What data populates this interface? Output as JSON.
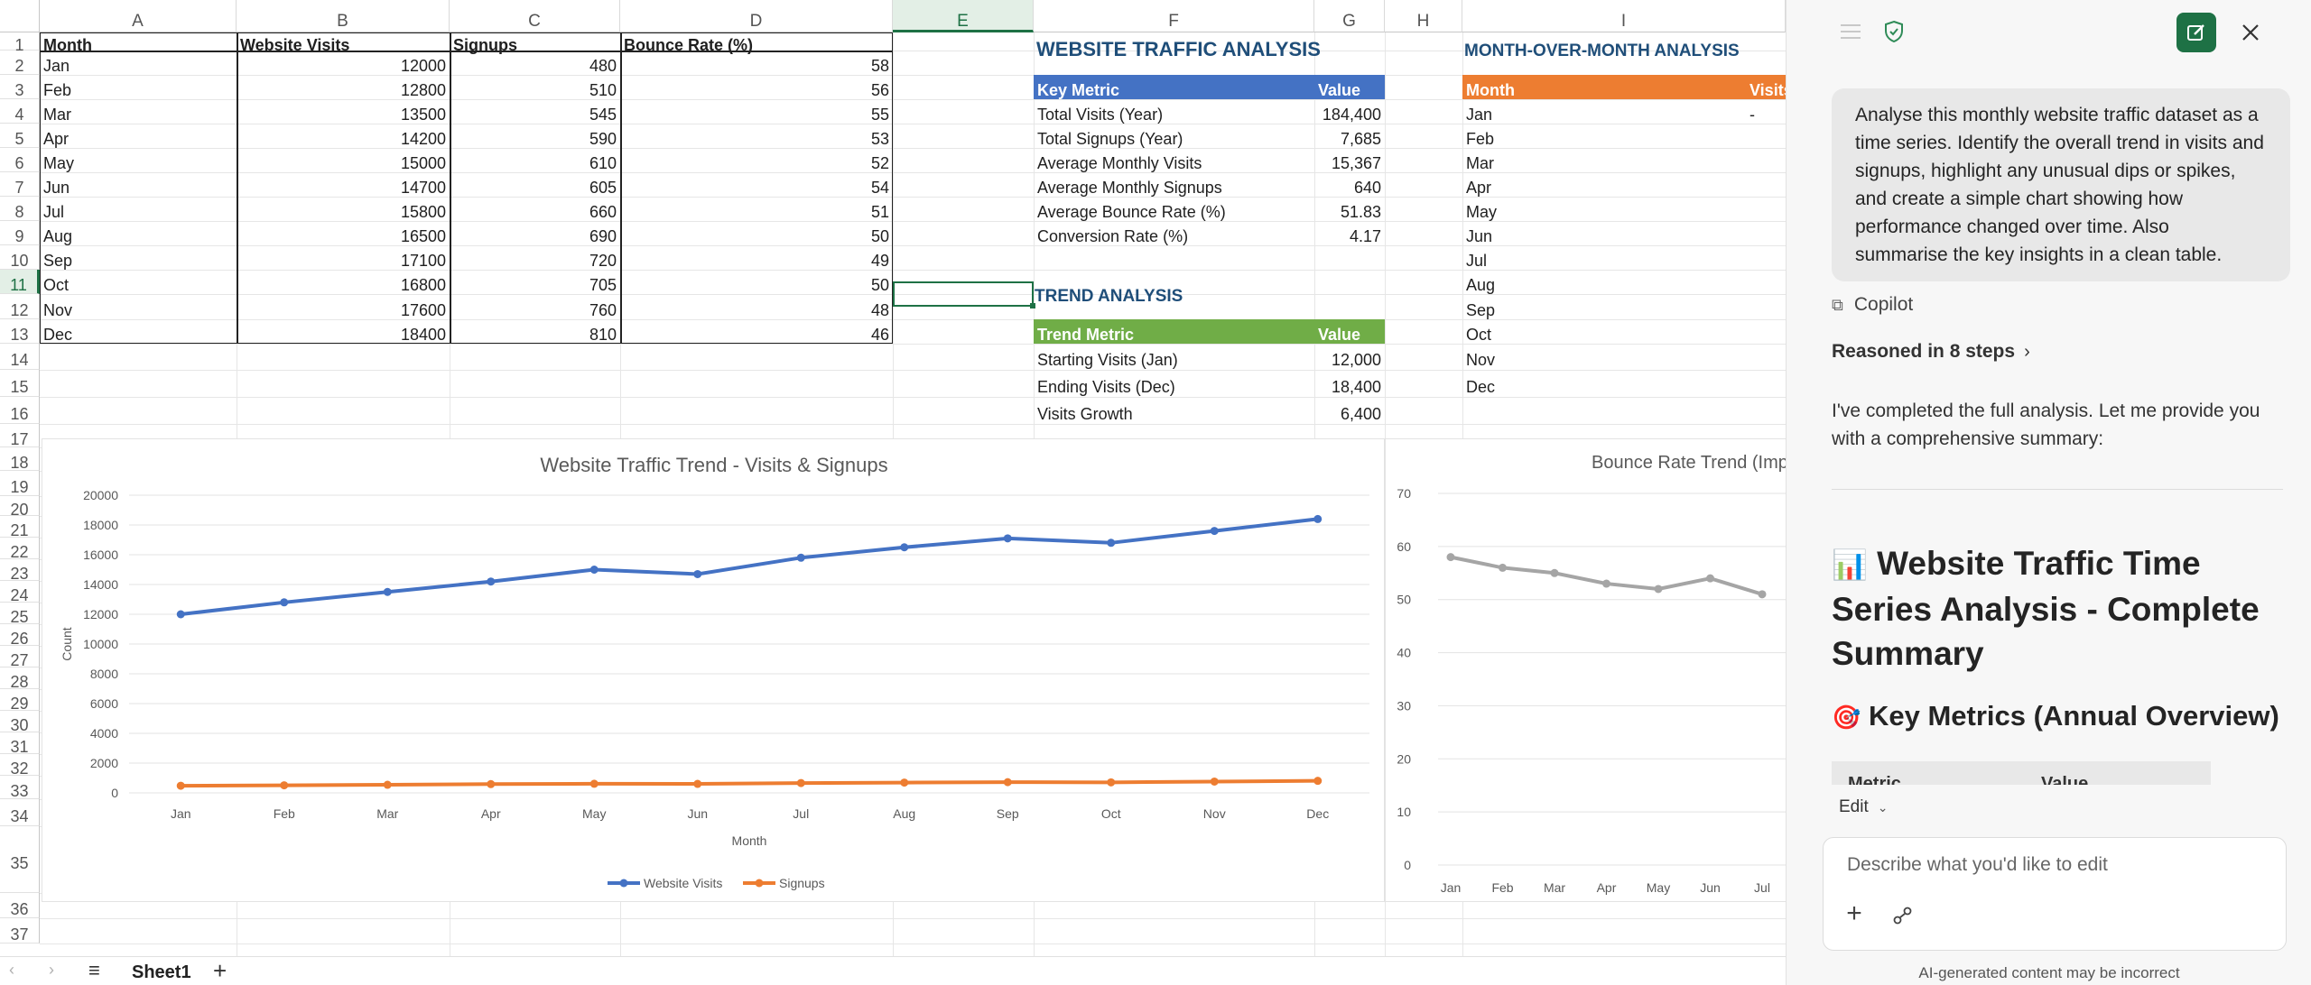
{
  "sheet": {
    "columns": [
      "A",
      "B",
      "C",
      "D",
      "E",
      "F",
      "G",
      "H",
      "I"
    ],
    "headers": [
      "Month",
      "Website Visits",
      "Signups",
      "Bounce Rate (%)"
    ],
    "rows": [
      [
        "Jan",
        "12000",
        "480",
        "58"
      ],
      [
        "Feb",
        "12800",
        "510",
        "56"
      ],
      [
        "Mar",
        "13500",
        "545",
        "55"
      ],
      [
        "Apr",
        "14200",
        "590",
        "53"
      ],
      [
        "May",
        "15000",
        "610",
        "52"
      ],
      [
        "Jun",
        "14700",
        "605",
        "54"
      ],
      [
        "Jul",
        "15800",
        "660",
        "51"
      ],
      [
        "Aug",
        "16500",
        "690",
        "50"
      ],
      [
        "Sep",
        "17100",
        "720",
        "49"
      ],
      [
        "Oct",
        "16800",
        "705",
        "50"
      ],
      [
        "Nov",
        "17600",
        "760",
        "48"
      ],
      [
        "Dec",
        "18400",
        "810",
        "46"
      ]
    ],
    "row_numbers": [
      "1",
      "2",
      "3",
      "4",
      "5",
      "6",
      "7",
      "8",
      "9",
      "10",
      "11",
      "12",
      "13",
      "14",
      "15",
      "16",
      "17",
      "18",
      "19",
      "20",
      "21",
      "22",
      "23",
      "24",
      "25",
      "26",
      "27",
      "28",
      "29",
      "30",
      "31",
      "32",
      "33",
      "34",
      "35",
      "36",
      "37"
    ],
    "traffic_title": "WEBSITE TRAFFIC ANALYSIS",
    "key_metrics_header": [
      "Key Metric",
      "Value"
    ],
    "key_metrics": [
      [
        "Total Visits (Year)",
        "184,400"
      ],
      [
        "Total Signups (Year)",
        "7,685"
      ],
      [
        "Average Monthly Visits",
        "15,367"
      ],
      [
        "Average Monthly Signups",
        "640"
      ],
      [
        "Average Bounce Rate (%)",
        "51.83"
      ],
      [
        "Conversion Rate (%)",
        "4.17"
      ]
    ],
    "trend_title": "TREND ANALYSIS",
    "trend_header": [
      "Trend Metric",
      "Value"
    ],
    "trend_rows": [
      [
        "Starting Visits (Jan)",
        "12,000"
      ],
      [
        "Ending Visits (Dec)",
        "18,400"
      ],
      [
        "Visits Growth",
        "6,400"
      ]
    ],
    "mom_title": "MONTH-OVER-MONTH ANALYSIS",
    "mom_header": [
      "Month",
      "Visits"
    ],
    "mom_months": [
      "Jan",
      "Feb",
      "Mar",
      "Apr",
      "May",
      "Jun",
      "Jul",
      "Aug",
      "Sep",
      "Oct",
      "Nov",
      "Dec"
    ],
    "mom_first_value": "-",
    "sheet_tab": "Sheet1",
    "colors": {
      "blue_header": "#4472c4",
      "green_header": "#70ad47",
      "orange_header": "#ed7d31",
      "selection": "#1e7145"
    }
  },
  "chart_data": [
    {
      "type": "line",
      "title": "Website Traffic Trend - Visits & Signups",
      "xlabel": "Month",
      "ylabel": "Count",
      "categories": [
        "Jan",
        "Feb",
        "Mar",
        "Apr",
        "May",
        "Jun",
        "Jul",
        "Aug",
        "Sep",
        "Oct",
        "Nov",
        "Dec"
      ],
      "series": [
        {
          "name": "Website Visits",
          "color": "#4472c4",
          "values": [
            12000,
            12800,
            13500,
            14200,
            15000,
            14700,
            15800,
            16500,
            17100,
            16800,
            17600,
            18400
          ]
        },
        {
          "name": "Signups",
          "color": "#ed7d31",
          "values": [
            480,
            510,
            545,
            590,
            610,
            605,
            660,
            690,
            720,
            705,
            760,
            810
          ]
        }
      ],
      "ylim": [
        0,
        20000
      ],
      "yticks": [
        "0",
        "2000",
        "4000",
        "6000",
        "8000",
        "10000",
        "12000",
        "14000",
        "16000",
        "18000",
        "20000"
      ],
      "grid": true,
      "legend": "bottom"
    },
    {
      "type": "line",
      "title": "Bounce Rate Trend (Impr",
      "categories": [
        "Jan",
        "Feb",
        "Mar",
        "Apr",
        "May",
        "Jun",
        "Jul"
      ],
      "series": [
        {
          "color": "#a5a5a5",
          "values": [
            58,
            56,
            55,
            53,
            52,
            54,
            51
          ]
        }
      ],
      "ylim": [
        0,
        70
      ],
      "yticks": [
        "0",
        "10",
        "20",
        "30",
        "40",
        "50",
        "60",
        "70"
      ],
      "grid": true
    }
  ],
  "copilot": {
    "user_prompt": "Analyse this monthly website traffic dataset as a time series. Identify the overall trend in visits and signups, highlight any unusual dips or spikes, and create a simple chart showing how performance changed over time. Also summarise the key insights in a clean table.",
    "label": "Copilot",
    "reasoned": "Reasoned in 8 steps",
    "reply": "I've completed the full analysis. Let me provide you with a comprehensive summary:",
    "heading1_emoji": "📊",
    "heading1": "Website Traffic Time Series Analysis - Complete Summary",
    "heading2_emoji": "🎯",
    "heading2": "Key Metrics (Annual Overview)",
    "table_partial": [
      "Metric",
      "Value"
    ],
    "edit_mode": "Edit",
    "input_placeholder": "Describe what you'd like to edit",
    "disclaimer": "AI-generated content may be incorrect"
  }
}
